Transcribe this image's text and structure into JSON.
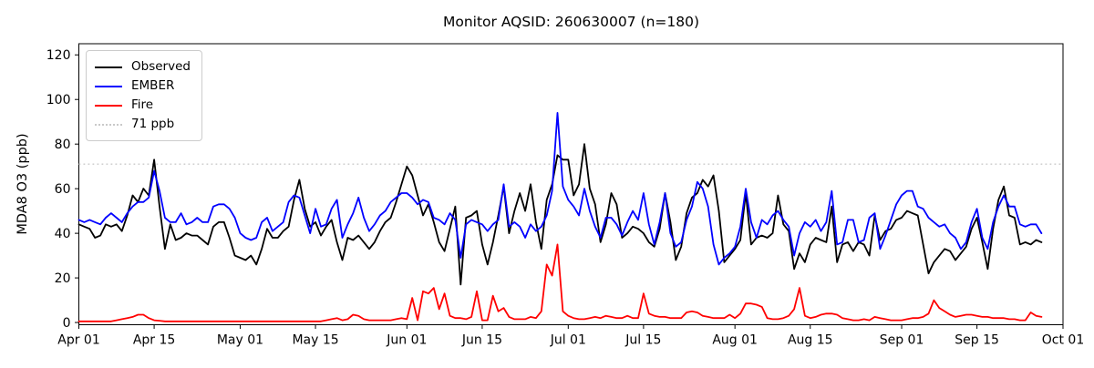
{
  "title": "Monitor AQSID: 260630007 (n=180)",
  "axes": {
    "ylabel": "MDA8 O3 (ppb)",
    "y_ticks": [
      0,
      20,
      40,
      60,
      80,
      100,
      120
    ],
    "x_ticks": [
      {
        "label": "Apr 01",
        "day": 0
      },
      {
        "label": "Apr 15",
        "day": 14
      },
      {
        "label": "May 01",
        "day": 30
      },
      {
        "label": "May 15",
        "day": 44
      },
      {
        "label": "Jun 01",
        "day": 61
      },
      {
        "label": "Jun 15",
        "day": 75
      },
      {
        "label": "Jul 01",
        "day": 91
      },
      {
        "label": "Jul 15",
        "day": 105
      },
      {
        "label": "Aug 01",
        "day": 122
      },
      {
        "label": "Aug 15",
        "day": 136
      },
      {
        "label": "Sep 01",
        "day": 153
      },
      {
        "label": "Sep 15",
        "day": 167
      },
      {
        "label": "Oct 01",
        "day": 183
      }
    ],
    "ylim": [
      -1,
      125
    ],
    "xlim_days": [
      0,
      183
    ]
  },
  "legend": {
    "entries": [
      {
        "label": "Observed",
        "color": "#000000",
        "style": "solid"
      },
      {
        "label": "EMBER",
        "color": "#0000ff",
        "style": "solid"
      },
      {
        "label": "Fire",
        "color": "#ff0000",
        "style": "solid"
      },
      {
        "label": "71 ppb",
        "color": "#c9c9c9",
        "style": "dotted"
      }
    ]
  },
  "chart_data": {
    "type": "line",
    "title": "Monitor AQSID: 260630007 (n=180)",
    "xlabel": "",
    "ylabel": "MDA8 O3 (ppb)",
    "n_points": 180,
    "x_unit": "days since Apr 01",
    "x_start_label": "Apr 01",
    "x_end_label": "Sep 27",
    "grid": false,
    "legend_position": "upper left",
    "threshold": {
      "value": 71,
      "label": "71 ppb",
      "color": "#c9c9c9",
      "style": "dotted"
    },
    "series": [
      {
        "name": "Observed",
        "color": "#000000",
        "values": [
          44,
          43,
          42,
          38,
          39,
          44,
          43,
          44,
          41,
          48,
          57,
          54,
          60,
          57,
          73,
          52,
          33,
          44,
          37,
          38,
          40,
          39,
          39,
          37,
          35,
          43,
          45,
          45,
          38,
          30,
          29,
          28,
          30,
          26,
          33,
          42,
          38,
          38,
          41,
          43,
          55,
          64,
          51,
          43,
          45,
          39,
          43,
          46,
          36,
          28,
          38,
          37,
          39,
          36,
          33,
          36,
          41,
          45,
          47,
          54,
          62,
          70,
          66,
          57,
          48,
          53,
          45,
          36,
          32,
          42,
          52,
          17,
          47,
          48,
          50,
          35,
          26,
          36,
          48,
          61,
          40,
          50,
          58,
          50,
          62,
          45,
          33,
          55,
          62,
          75,
          73,
          73,
          57,
          62,
          80,
          60,
          53,
          36,
          44,
          58,
          53,
          38,
          40,
          43,
          42,
          40,
          36,
          34,
          42,
          58,
          45,
          28,
          34,
          49,
          56,
          58,
          64,
          61,
          66,
          50,
          27,
          30,
          33,
          37,
          58,
          35,
          38,
          39,
          38,
          40,
          57,
          44,
          41,
          24,
          31,
          27,
          35,
          38,
          37,
          36,
          52,
          27,
          35,
          36,
          32,
          36,
          35,
          30,
          48,
          37,
          41,
          42,
          46,
          47,
          50,
          49,
          48,
          35,
          22,
          27,
          30,
          33,
          32,
          28,
          31,
          34,
          42,
          47,
          36,
          24,
          42,
          55,
          61,
          48,
          47,
          35,
          36,
          35,
          37,
          36
        ]
      },
      {
        "name": "EMBER",
        "color": "#0000ff",
        "values": [
          46,
          45,
          46,
          45,
          44,
          47,
          49,
          47,
          45,
          49,
          52,
          54,
          54,
          56,
          68,
          59,
          47,
          45,
          45,
          49,
          44,
          45,
          47,
          45,
          45,
          52,
          53,
          53,
          51,
          47,
          40,
          38,
          37,
          38,
          45,
          47,
          41,
          43,
          45,
          54,
          57,
          56,
          48,
          40,
          51,
          43,
          44,
          51,
          55,
          38,
          44,
          49,
          56,
          47,
          41,
          44,
          48,
          50,
          54,
          56,
          58,
          58,
          56,
          53,
          55,
          54,
          47,
          46,
          44,
          49,
          46,
          29,
          44,
          46,
          45,
          44,
          41,
          44,
          46,
          62,
          43,
          45,
          43,
          38,
          44,
          41,
          43,
          48,
          59,
          94,
          61,
          55,
          52,
          48,
          60,
          50,
          43,
          38,
          47,
          47,
          44,
          39,
          45,
          50,
          46,
          58,
          44,
          35,
          45,
          58,
          40,
          34,
          36,
          46,
          52,
          63,
          60,
          52,
          35,
          26,
          29,
          31,
          34,
          43,
          60,
          45,
          38,
          46,
          44,
          48,
          50,
          46,
          43,
          30,
          40,
          45,
          43,
          46,
          41,
          45,
          59,
          35,
          36,
          46,
          46,
          36,
          37,
          47,
          49,
          33,
          39,
          46,
          53,
          57,
          59,
          59,
          52,
          51,
          47,
          45,
          43,
          44,
          40,
          38,
          33,
          36,
          45,
          51,
          38,
          33,
          45,
          52,
          57,
          52,
          52,
          44,
          43,
          44,
          44,
          40
        ]
      },
      {
        "name": "Fire",
        "color": "#ff0000",
        "values": [
          0.5,
          0.5,
          0.5,
          0.5,
          0.5,
          0.5,
          0.5,
          1,
          1.5,
          2,
          2.5,
          3.5,
          3.5,
          2,
          1,
          0.8,
          0.5,
          0.5,
          0.5,
          0.5,
          0.5,
          0.5,
          0.5,
          0.5,
          0.5,
          0.5,
          0.5,
          0.5,
          0.5,
          0.5,
          0.5,
          0.5,
          0.5,
          0.5,
          0.5,
          0.5,
          0.5,
          0.5,
          0.5,
          0.5,
          0.5,
          0.5,
          0.5,
          0.5,
          0.5,
          0.5,
          1,
          1.5,
          2,
          1,
          1.5,
          3.5,
          3,
          1.5,
          1,
          1,
          1,
          1,
          1,
          1.5,
          2,
          1.5,
          11,
          1,
          14,
          13,
          15.5,
          6,
          13,
          3,
          2,
          2,
          1.5,
          2.5,
          14,
          1,
          1,
          12,
          5,
          6.5,
          2.5,
          1.5,
          1.5,
          1.5,
          2.5,
          2,
          5,
          26,
          21,
          35,
          5,
          3,
          2,
          1.5,
          1.5,
          2,
          2.5,
          2,
          3,
          2.5,
          2,
          2,
          3,
          2,
          2,
          13,
          4,
          3,
          2.5,
          2.5,
          2,
          2,
          2,
          4.5,
          5,
          4.5,
          3,
          2.5,
          2,
          2,
          2,
          3.5,
          2,
          4,
          8.5,
          8.5,
          8,
          7,
          2,
          1.5,
          1.5,
          2,
          3,
          6,
          15.5,
          3,
          2,
          2.5,
          3.5,
          4,
          4,
          3.5,
          2,
          1.5,
          1,
          1,
          1.5,
          1,
          2.5,
          2,
          1.5,
          1,
          1,
          1,
          1.5,
          2,
          2,
          2.5,
          4,
          10,
          6.5,
          5,
          3.5,
          2.5,
          3,
          3.5,
          3.5,
          3,
          2.5,
          2.5,
          2,
          2,
          2,
          1.5,
          1.5,
          1,
          1,
          4.5,
          3,
          2.5
        ]
      }
    ]
  }
}
